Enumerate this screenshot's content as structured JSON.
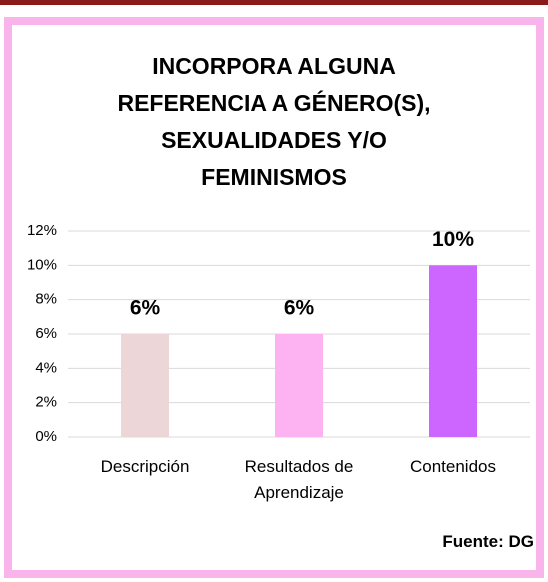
{
  "chart_data": {
    "type": "bar",
    "title": "INCORPORA ALGUNA REFERENCIA A GÉNERO(S), SEXUALIDADES Y/O FEMINISMOS",
    "categories": [
      "Descripción",
      "Resultados de Aprendizaje",
      "Contenidos"
    ],
    "values": [
      6,
      6,
      10
    ],
    "value_labels": [
      "6%",
      "6%",
      "10%"
    ],
    "colors": [
      "#ecd6d8",
      "#fdb3f1",
      "#cc66ff"
    ],
    "ylim": [
      0,
      12
    ],
    "yticks": [
      {
        "value": 0,
        "label": "0%"
      },
      {
        "value": 2,
        "label": "2%"
      },
      {
        "value": 4,
        "label": "4%"
      },
      {
        "value": 6,
        "label": "6%"
      },
      {
        "value": 8,
        "label": "8%"
      },
      {
        "value": 10,
        "label": "10%"
      },
      {
        "value": 12,
        "label": "12%"
      }
    ],
    "grid": true,
    "annotation": "Fuente:  DG"
  }
}
